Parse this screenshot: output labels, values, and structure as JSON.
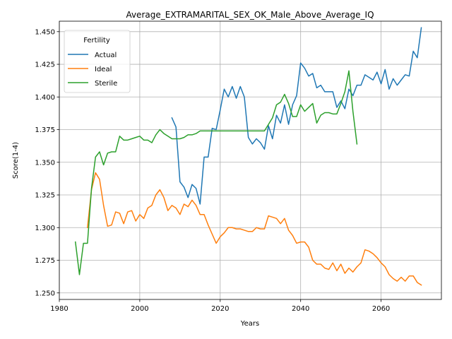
{
  "chart_data": {
    "type": "line",
    "title": "Average_EXTRAMARITAL_SEX_OK_Male_Above_Average_IQ",
    "xlabel": "Years",
    "ylabel": "Score(1-4)",
    "xlim": [
      1980,
      2075
    ],
    "ylim": [
      1.245,
      1.458
    ],
    "xticks": [
      1980,
      2000,
      2020,
      2040,
      2060
    ],
    "yticks": [
      1.25,
      1.275,
      1.3,
      1.325,
      1.35,
      1.375,
      1.4,
      1.425,
      1.45
    ],
    "xtick_labels": [
      "1980",
      "2000",
      "2020",
      "2040",
      "2060"
    ],
    "ytick_labels": [
      "1.250",
      "1.275",
      "1.300",
      "1.325",
      "1.350",
      "1.375",
      "1.400",
      "1.425",
      "1.450"
    ],
    "grid": true,
    "legend": {
      "title": "Fertility",
      "placement": "top-left"
    },
    "series": [
      {
        "name": "Actual",
        "color": "#1f77b4",
        "x": [
          2008,
          2009,
          2010,
          2011,
          2012,
          2013,
          2014,
          2015,
          2016,
          2017,
          2018,
          2019,
          2020,
          2021,
          2022,
          2023,
          2024,
          2025,
          2026,
          2027,
          2028,
          2029,
          2030,
          2031,
          2032,
          2033,
          2034,
          2035,
          2036,
          2037,
          2038,
          2039,
          2040,
          2041,
          2042,
          2043,
          2044,
          2045,
          2046,
          2047,
          2048,
          2049,
          2050,
          2051,
          2052,
          2053,
          2054,
          2055,
          2056,
          2057,
          2058,
          2059,
          2060,
          2061,
          2062,
          2063,
          2064,
          2065,
          2066,
          2067,
          2068,
          2069,
          2070
        ],
        "y": [
          1.384,
          1.377,
          1.335,
          1.331,
          1.323,
          1.333,
          1.33,
          1.318,
          1.354,
          1.354,
          1.376,
          1.375,
          1.39,
          1.406,
          1.4,
          1.408,
          1.399,
          1.408,
          1.4,
          1.369,
          1.364,
          1.368,
          1.365,
          1.36,
          1.378,
          1.368,
          1.386,
          1.38,
          1.394,
          1.379,
          1.394,
          1.401,
          1.426,
          1.422,
          1.416,
          1.418,
          1.407,
          1.409,
          1.404,
          1.404,
          1.404,
          1.392,
          1.397,
          1.391,
          1.406,
          1.401,
          1.409,
          1.409,
          1.417,
          1.415,
          1.413,
          1.419,
          1.41,
          1.421,
          1.406,
          1.414,
          1.409,
          1.413,
          1.417,
          1.416,
          1.435,
          1.43,
          1.453
        ]
      },
      {
        "name": "Ideal",
        "color": "#ff7f0e",
        "x": [
          1987,
          1988,
          1989,
          1990,
          1991,
          1992,
          1993,
          1994,
          1995,
          1996,
          1997,
          1998,
          1999,
          2000,
          2001,
          2002,
          2003,
          2004,
          2005,
          2006,
          2007,
          2008,
          2009,
          2010,
          2011,
          2012,
          2013,
          2014,
          2015,
          2016,
          2017,
          2018,
          2019,
          2020,
          2021,
          2022,
          2023,
          2024,
          2025,
          2026,
          2027,
          2028,
          2029,
          2030,
          2031,
          2032,
          2033,
          2034,
          2035,
          2036,
          2037,
          2038,
          2039,
          2040,
          2041,
          2042,
          2043,
          2044,
          2045,
          2046,
          2047,
          2048,
          2049,
          2050,
          2051,
          2052,
          2053,
          2054,
          2055,
          2056,
          2057,
          2058,
          2059,
          2060,
          2061,
          2062,
          2063,
          2064,
          2065,
          2066,
          2067,
          2068,
          2069,
          2070
        ],
        "y": [
          1.3,
          1.329,
          1.342,
          1.337,
          1.317,
          1.301,
          1.302,
          1.312,
          1.311,
          1.303,
          1.312,
          1.313,
          1.305,
          1.31,
          1.307,
          1.315,
          1.317,
          1.325,
          1.329,
          1.323,
          1.313,
          1.317,
          1.315,
          1.31,
          1.318,
          1.316,
          1.321,
          1.317,
          1.31,
          1.31,
          1.302,
          1.295,
          1.288,
          1.293,
          1.296,
          1.3,
          1.3,
          1.299,
          1.299,
          1.298,
          1.297,
          1.297,
          1.3,
          1.299,
          1.299,
          1.309,
          1.308,
          1.307,
          1.303,
          1.307,
          1.298,
          1.294,
          1.288,
          1.289,
          1.289,
          1.285,
          1.275,
          1.272,
          1.272,
          1.269,
          1.268,
          1.273,
          1.267,
          1.272,
          1.265,
          1.269,
          1.266,
          1.27,
          1.273,
          1.283,
          1.282,
          1.28,
          1.277,
          1.273,
          1.27,
          1.264,
          1.261,
          1.259,
          1.262,
          1.259,
          1.263,
          1.263,
          1.258,
          1.256
        ]
      },
      {
        "name": "Sterile",
        "color": "#2ca02c",
        "x": [
          1984,
          1985,
          1986,
          1987,
          1988,
          1989,
          1990,
          1991,
          1992,
          1993,
          1994,
          1995,
          1996,
          1997,
          1998,
          1999,
          2000,
          2001,
          2002,
          2003,
          2004,
          2005,
          2006,
          2007,
          2008,
          2009,
          2010,
          2011,
          2012,
          2013,
          2014,
          2015,
          2016,
          2017,
          2018,
          2019,
          2020,
          2021,
          2022,
          2023,
          2024,
          2025,
          2026,
          2027,
          2028,
          2029,
          2030,
          2031,
          2032,
          2033,
          2034,
          2035,
          2036,
          2037,
          2038,
          2039,
          2040,
          2041,
          2042,
          2043,
          2044,
          2045,
          2046,
          2047,
          2048,
          2049,
          2050,
          2051,
          2052,
          2053,
          2054
        ],
        "y": [
          1.289,
          1.264,
          1.288,
          1.288,
          1.33,
          1.354,
          1.358,
          1.348,
          1.357,
          1.358,
          1.358,
          1.37,
          1.367,
          1.367,
          1.368,
          1.369,
          1.37,
          1.367,
          1.367,
          1.365,
          1.371,
          1.375,
          1.372,
          1.37,
          1.368,
          1.368,
          1.368,
          1.369,
          1.371,
          1.371,
          1.372,
          1.374,
          1.374,
          1.374,
          1.374,
          1.374,
          1.374,
          1.374,
          1.374,
          1.374,
          1.374,
          1.374,
          1.374,
          1.374,
          1.374,
          1.374,
          1.374,
          1.374,
          1.379,
          1.384,
          1.394,
          1.396,
          1.402,
          1.395,
          1.385,
          1.385,
          1.394,
          1.389,
          1.392,
          1.395,
          1.38,
          1.386,
          1.388,
          1.388,
          1.387,
          1.387,
          1.395,
          1.404,
          1.42,
          1.389,
          1.364
        ]
      }
    ]
  }
}
